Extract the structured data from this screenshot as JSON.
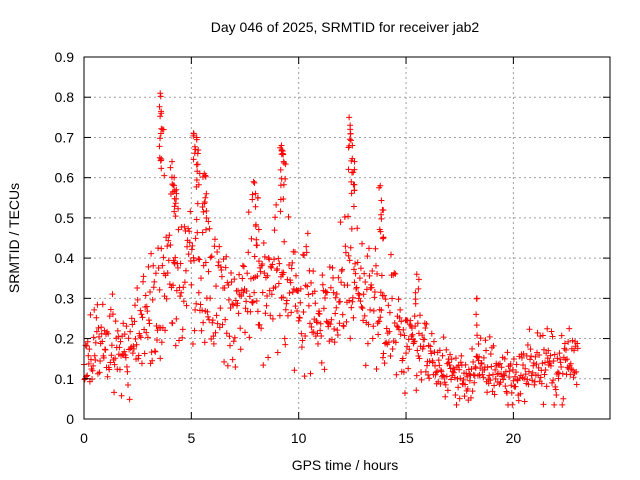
{
  "chart_data": {
    "type": "scatter",
    "title": "Day 046 of 2025, SRMTID for receiver jab2",
    "xlabel": "GPS time / hours",
    "ylabel": "SRMTID / TECUs",
    "xlim": [
      0,
      24.5
    ],
    "ylim": [
      0,
      0.9
    ],
    "xticks": [
      0,
      5,
      10,
      15,
      20
    ],
    "yticks": [
      0,
      0.1,
      0.2,
      0.3,
      0.4,
      0.5,
      0.6,
      0.7,
      0.8,
      0.9
    ],
    "xtick_labels": [
      "0",
      "5",
      "10",
      "15",
      "20"
    ],
    "ytick_labels": [
      "0",
      "0.1",
      "0.2",
      "0.3",
      "0.4",
      "0.5",
      "0.6",
      "0.7",
      "0.8",
      "0.9"
    ],
    "grid": true,
    "marker": "+",
    "color": "#ff0000",
    "series": [
      {
        "name": "SRMTID",
        "trend": [
          [
            0.0,
            0.14
          ],
          [
            0.5,
            0.17
          ],
          [
            1.0,
            0.19
          ],
          [
            1.5,
            0.17
          ],
          [
            2.0,
            0.16
          ],
          [
            2.5,
            0.22
          ],
          [
            3.0,
            0.3
          ],
          [
            3.5,
            0.33
          ],
          [
            4.0,
            0.36
          ],
          [
            4.5,
            0.34
          ],
          [
            5.0,
            0.38
          ],
          [
            5.5,
            0.33
          ],
          [
            6.0,
            0.32
          ],
          [
            6.5,
            0.3
          ],
          [
            7.0,
            0.28
          ],
          [
            7.5,
            0.3
          ],
          [
            8.0,
            0.33
          ],
          [
            8.5,
            0.35
          ],
          [
            9.0,
            0.34
          ],
          [
            9.5,
            0.31
          ],
          [
            10.0,
            0.3
          ],
          [
            10.5,
            0.33
          ],
          [
            11.0,
            0.27
          ],
          [
            11.5,
            0.24
          ],
          [
            12.0,
            0.35
          ],
          [
            12.5,
            0.38
          ],
          [
            13.0,
            0.3
          ],
          [
            13.5,
            0.28
          ],
          [
            14.0,
            0.26
          ],
          [
            14.5,
            0.24
          ],
          [
            15.0,
            0.17
          ],
          [
            15.5,
            0.18
          ],
          [
            16.0,
            0.16
          ],
          [
            16.5,
            0.13
          ],
          [
            17.0,
            0.12
          ],
          [
            17.5,
            0.1
          ],
          [
            18.0,
            0.11
          ],
          [
            18.5,
            0.12
          ],
          [
            19.0,
            0.13
          ],
          [
            19.5,
            0.11
          ],
          [
            20.0,
            0.1
          ],
          [
            20.5,
            0.12
          ],
          [
            21.0,
            0.14
          ],
          [
            21.5,
            0.13
          ],
          [
            22.0,
            0.13
          ],
          [
            22.5,
            0.14
          ],
          [
            23.0,
            0.15
          ]
        ],
        "peaks": [
          [
            3.55,
            0.81
          ],
          [
            3.6,
            0.76
          ],
          [
            3.65,
            0.72
          ],
          [
            4.1,
            0.64
          ],
          [
            4.2,
            0.6
          ],
          [
            4.3,
            0.57
          ],
          [
            5.1,
            0.71
          ],
          [
            5.25,
            0.7
          ],
          [
            5.3,
            0.66
          ],
          [
            5.6,
            0.61
          ],
          [
            5.7,
            0.56
          ],
          [
            7.9,
            0.59
          ],
          [
            8.1,
            0.55
          ],
          [
            9.2,
            0.68
          ],
          [
            9.25,
            0.66
          ],
          [
            9.3,
            0.64
          ],
          [
            12.35,
            0.75
          ],
          [
            12.4,
            0.72
          ],
          [
            12.5,
            0.68
          ],
          [
            12.6,
            0.64
          ],
          [
            13.8,
            0.58
          ],
          [
            13.9,
            0.52
          ],
          [
            15.5,
            0.36
          ],
          [
            18.3,
            0.3
          ]
        ]
      }
    ]
  }
}
